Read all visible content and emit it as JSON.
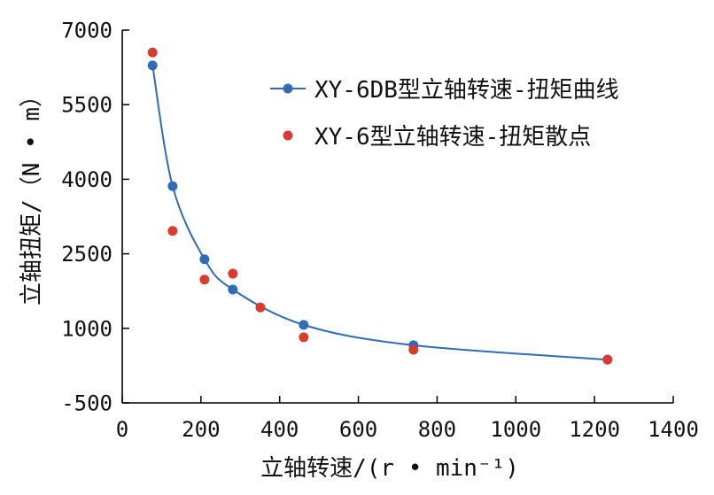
{
  "chart_data": {
    "type": "line",
    "xlabel": "立轴转速/(r • min⁻¹)",
    "ylabel": "立轴扭矩/（N • m）",
    "xlim": [
      0,
      1400
    ],
    "ylim": [
      -500,
      7000
    ],
    "xticks": [
      0,
      200,
      400,
      600,
      800,
      1000,
      1200,
      1400
    ],
    "yticks": [
      -500,
      1000,
      2500,
      4000,
      5500,
      7000
    ],
    "grid": false,
    "legend_position": "top-right",
    "series": [
      {
        "name": "XY-6DB型立轴转速-扭矩曲线",
        "type": "line",
        "color": "#2f6bb7",
        "x": [
          77,
          128,
          209,
          281,
          461,
          740,
          1233
        ],
        "y": [
          6290,
          3860,
          2390,
          1780,
          1070,
          660,
          370
        ]
      },
      {
        "name": "XY-6型立轴转速-扭矩散点",
        "type": "scatter",
        "color": "#d93b30",
        "x": [
          77,
          128,
          209,
          281,
          351,
          461,
          740,
          1233
        ],
        "y": [
          6550,
          2960,
          1980,
          2100,
          1420,
          820,
          570,
          370
        ]
      }
    ]
  }
}
